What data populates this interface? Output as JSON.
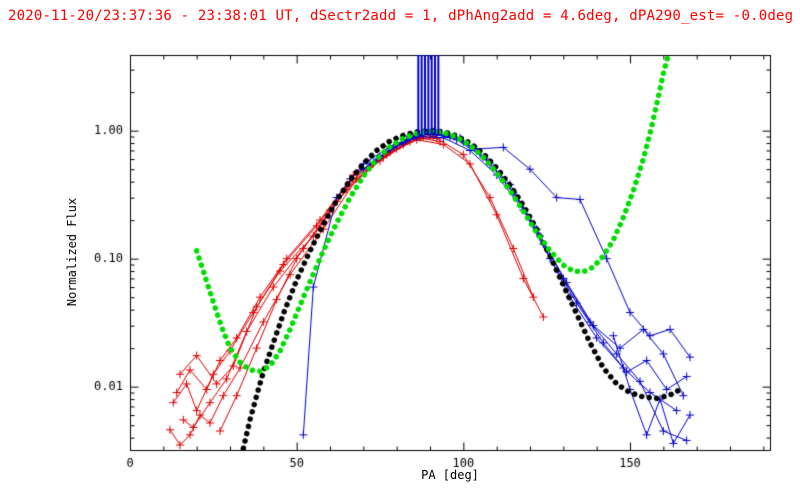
{
  "chart_data": {
    "type": "line",
    "title": "2020-11-20/23:37:36 - 23:38:01 UT, dSectr2add = 1, dPhAng2add = 4.6deg, dPA290_est= -0.0deg",
    "title_color": "#ff0000",
    "xlabel": "PA [deg]",
    "ylabel": "Normalized Flux",
    "xlim": [
      0,
      192
    ],
    "ylim": [
      0.0032,
      3.9
    ],
    "x_major_ticks": [
      0,
      50,
      100,
      150
    ],
    "x_minor_step": 10,
    "y_major_ticks": [
      0.01,
      0.1,
      1.0
    ],
    "y_tick_labels": [
      "0.01",
      "0.10",
      "1.00"
    ],
    "axis_color": "#000000",
    "grid": false,
    "legend": "none",
    "colors": {
      "model_black": "#000000",
      "model_green": "#00dd00",
      "red_data": "#dd0000",
      "blue_data": "#0000cc"
    },
    "series": [
      {
        "name": "red-trace-1",
        "type": "line-plus",
        "color": "#dd0000",
        "points": [
          [
            12,
            0.0046
          ],
          [
            15,
            0.0035
          ],
          [
            18,
            0.0042
          ],
          [
            21,
            0.006
          ],
          [
            24,
            0.0052
          ],
          [
            28,
            0.0085
          ],
          [
            33,
            0.014
          ],
          [
            40,
            0.032
          ],
          [
            48,
            0.075
          ],
          [
            58,
            0.17
          ],
          [
            68,
            0.42
          ],
          [
            78,
            0.68
          ],
          [
            87,
            0.88
          ],
          [
            93,
            0.82
          ]
        ]
      },
      {
        "name": "red-trace-2",
        "type": "line-plus",
        "color": "#dd0000",
        "points": [
          [
            13,
            0.0075
          ],
          [
            17,
            0.0105
          ],
          [
            20,
            0.0065
          ],
          [
            25,
            0.0125
          ],
          [
            30,
            0.019
          ],
          [
            37,
            0.038
          ],
          [
            45,
            0.08
          ],
          [
            55,
            0.15
          ],
          [
            65,
            0.35
          ],
          [
            75,
            0.58
          ],
          [
            84,
            0.82
          ],
          [
            91,
            0.9
          ]
        ]
      },
      {
        "name": "red-trace-3",
        "type": "line-plus",
        "color": "#dd0000",
        "points": [
          [
            14,
            0.009
          ],
          [
            18,
            0.0135
          ],
          [
            23,
            0.0095
          ],
          [
            27,
            0.016
          ],
          [
            32,
            0.024
          ],
          [
            39,
            0.05
          ],
          [
            47,
            0.1
          ],
          [
            57,
            0.2
          ],
          [
            67,
            0.45
          ],
          [
            77,
            0.65
          ],
          [
            86,
            0.85
          ],
          [
            94,
            0.78
          ],
          [
            102,
            0.55
          ],
          [
            110,
            0.22
          ],
          [
            118,
            0.07
          ],
          [
            124,
            0.035
          ]
        ]
      },
      {
        "name": "red-trace-4",
        "type": "line-plus",
        "color": "#dd0000",
        "points": [
          [
            16,
            0.0055
          ],
          [
            19,
            0.0048
          ],
          [
            24,
            0.0075
          ],
          [
            29,
            0.0115
          ],
          [
            35,
            0.027
          ],
          [
            43,
            0.06
          ],
          [
            52,
            0.12
          ],
          [
            62,
            0.28
          ],
          [
            72,
            0.52
          ],
          [
            82,
            0.78
          ],
          [
            90,
            0.93
          ]
        ]
      },
      {
        "name": "red-trace-5",
        "type": "line-plus",
        "color": "#dd0000",
        "points": [
          [
            15,
            0.0125
          ],
          [
            20,
            0.0175
          ],
          [
            26,
            0.0105
          ],
          [
            31,
            0.0145
          ],
          [
            38,
            0.042
          ],
          [
            46,
            0.09
          ],
          [
            56,
            0.18
          ],
          [
            66,
            0.4
          ],
          [
            76,
            0.62
          ],
          [
            85,
            0.88
          ],
          [
            92,
            0.87
          ],
          [
            100,
            0.65
          ],
          [
            108,
            0.3
          ],
          [
            115,
            0.12
          ],
          [
            121,
            0.05
          ]
        ]
      },
      {
        "name": "red-trace-6",
        "type": "line-plus",
        "color": "#dd0000",
        "points": [
          [
            27,
            0.0045
          ],
          [
            32,
            0.0085
          ],
          [
            38,
            0.02
          ],
          [
            44,
            0.048
          ],
          [
            50,
            0.1
          ],
          [
            60,
            0.24
          ],
          [
            70,
            0.5
          ],
          [
            80,
            0.72
          ],
          [
            88,
            0.9
          ]
        ]
      },
      {
        "name": "blue-trace-1",
        "type": "line-plus",
        "color": "#0000cc",
        "points": [
          [
            52,
            0.0042
          ],
          [
            55,
            0.06
          ],
          [
            62,
            0.3
          ],
          [
            70,
            0.55
          ],
          [
            78,
            0.75
          ],
          [
            86,
            0.92
          ],
          [
            92,
            0.95
          ],
          [
            100,
            0.82
          ],
          [
            108,
            0.55
          ],
          [
            116,
            0.3
          ],
          [
            124,
            0.13
          ],
          [
            132,
            0.05
          ],
          [
            140,
            0.024
          ],
          [
            148,
            0.014
          ],
          [
            156,
            0.009
          ],
          [
            164,
            0.0065
          ]
        ]
      },
      {
        "name": "blue-trace-2",
        "type": "line-plus",
        "color": "#0000cc",
        "points": [
          [
            66,
            0.42
          ],
          [
            74,
            0.6
          ],
          [
            82,
            0.8
          ],
          [
            90,
            0.96
          ],
          [
            98,
            0.85
          ],
          [
            106,
            0.62
          ],
          [
            114,
            0.38
          ],
          [
            122,
            0.17
          ],
          [
            130,
            0.07
          ],
          [
            138,
            0.032
          ],
          [
            146,
            0.018
          ],
          [
            153,
            0.011
          ],
          [
            160,
            0.0045
          ],
          [
            167,
            0.0038
          ]
        ]
      },
      {
        "name": "blue-trace-3",
        "type": "line-plus",
        "color": "#0000cc",
        "points": [
          [
            72,
            0.55
          ],
          [
            80,
            0.78
          ],
          [
            88,
            0.94
          ],
          [
            96,
            0.9
          ],
          [
            104,
            0.72
          ],
          [
            112,
            0.74
          ],
          [
            120,
            0.5
          ],
          [
            128,
            0.3
          ],
          [
            135,
            0.29
          ],
          [
            143,
            0.1
          ],
          [
            150,
            0.038
          ],
          [
            156,
            0.025
          ],
          [
            162,
            0.028
          ],
          [
            168,
            0.017
          ]
        ]
      },
      {
        "name": "blue-trace-4",
        "type": "line-plus",
        "color": "#0000cc",
        "points": [
          [
            70,
            0.5
          ],
          [
            78,
            0.72
          ],
          [
            86,
            0.9
          ],
          [
            94,
            0.88
          ],
          [
            102,
            0.7
          ],
          [
            110,
            0.45
          ],
          [
            118,
            0.24
          ],
          [
            126,
            0.1
          ],
          [
            134,
            0.045
          ],
          [
            142,
            0.022
          ],
          [
            149,
            0.013
          ],
          [
            155,
            0.016
          ],
          [
            161,
            0.0095
          ],
          [
            167,
            0.012
          ]
        ]
      },
      {
        "name": "blue-trace-5",
        "type": "line-plus",
        "color": "#0000cc",
        "points": [
          [
            75,
            0.62
          ],
          [
            83,
            0.85
          ],
          [
            91,
            0.97
          ],
          [
            99,
            0.88
          ],
          [
            107,
            0.6
          ],
          [
            115,
            0.33
          ],
          [
            123,
            0.15
          ],
          [
            131,
            0.065
          ],
          [
            139,
            0.03
          ],
          [
            147,
            0.02
          ],
          [
            154,
            0.028
          ],
          [
            160,
            0.018
          ],
          [
            166,
            0.0085
          ]
        ]
      },
      {
        "name": "blue-trace-6",
        "type": "line-plus",
        "color": "#0000cc",
        "points": [
          [
            145,
            0.025
          ],
          [
            150,
            0.0095
          ],
          [
            155,
            0.0042
          ],
          [
            159,
            0.008
          ],
          [
            163,
            0.0036
          ],
          [
            168,
            0.006
          ]
        ]
      },
      {
        "name": "model-black",
        "type": "dotted-curve",
        "color": "#000000",
        "points": [
          [
            34,
            0.0033
          ],
          [
            36,
            0.0055
          ],
          [
            38,
            0.0085
          ],
          [
            40,
            0.013
          ],
          [
            43,
            0.022
          ],
          [
            46,
            0.037
          ],
          [
            50,
            0.068
          ],
          [
            54,
            0.115
          ],
          [
            58,
            0.185
          ],
          [
            62,
            0.285
          ],
          [
            66,
            0.41
          ],
          [
            70,
            0.55
          ],
          [
            74,
            0.7
          ],
          [
            78,
            0.83
          ],
          [
            82,
            0.92
          ],
          [
            86,
            0.98
          ],
          [
            90,
            1.0
          ],
          [
            94,
            0.98
          ],
          [
            98,
            0.91
          ],
          [
            102,
            0.8
          ],
          [
            106,
            0.66
          ],
          [
            110,
            0.51
          ],
          [
            114,
            0.375
          ],
          [
            118,
            0.26
          ],
          [
            122,
            0.17
          ],
          [
            126,
            0.105
          ],
          [
            130,
            0.062
          ],
          [
            134,
            0.037
          ],
          [
            138,
            0.022
          ],
          [
            142,
            0.014
          ],
          [
            146,
            0.0105
          ],
          [
            150,
            0.009
          ],
          [
            154,
            0.0083
          ],
          [
            158,
            0.0081
          ],
          [
            162,
            0.0086
          ],
          [
            166,
            0.0098
          ]
        ]
      },
      {
        "name": "model-green",
        "type": "dotted-curve",
        "color": "#00dd00",
        "points": [
          [
            20,
            0.115
          ],
          [
            22,
            0.08
          ],
          [
            24,
            0.055
          ],
          [
            26,
            0.038
          ],
          [
            28,
            0.027
          ],
          [
            30,
            0.02
          ],
          [
            33,
            0.0155
          ],
          [
            36,
            0.0135
          ],
          [
            39,
            0.0132
          ],
          [
            42,
            0.0145
          ],
          [
            45,
            0.019
          ],
          [
            48,
            0.028
          ],
          [
            51,
            0.043
          ],
          [
            54,
            0.066
          ],
          [
            58,
            0.115
          ],
          [
            62,
            0.19
          ],
          [
            66,
            0.3
          ],
          [
            70,
            0.44
          ],
          [
            74,
            0.6
          ],
          [
            78,
            0.75
          ],
          [
            82,
            0.87
          ],
          [
            86,
            0.95
          ],
          [
            90,
            0.99
          ],
          [
            94,
            0.97
          ],
          [
            98,
            0.89
          ],
          [
            102,
            0.77
          ],
          [
            106,
            0.62
          ],
          [
            110,
            0.47
          ],
          [
            114,
            0.34
          ],
          [
            118,
            0.235
          ],
          [
            122,
            0.16
          ],
          [
            126,
            0.115
          ],
          [
            130,
            0.089
          ],
          [
            133,
            0.08
          ],
          [
            136,
            0.079
          ],
          [
            139,
            0.086
          ],
          [
            142,
            0.105
          ],
          [
            145,
            0.14
          ],
          [
            148,
            0.21
          ],
          [
            151,
            0.34
          ],
          [
            154,
            0.6
          ],
          [
            156,
            0.95
          ],
          [
            158,
            1.6
          ],
          [
            160,
            2.8
          ],
          [
            161.5,
            3.9
          ]
        ]
      }
    ],
    "spikes": {
      "name": "blue-vertical-spikes",
      "color": "#0000cc",
      "x": [
        86.5,
        87.5,
        88.5,
        89.5,
        90.5,
        91.5,
        92.5
      ],
      "y_bottom": 0.92,
      "y_top": 3.9
    }
  }
}
